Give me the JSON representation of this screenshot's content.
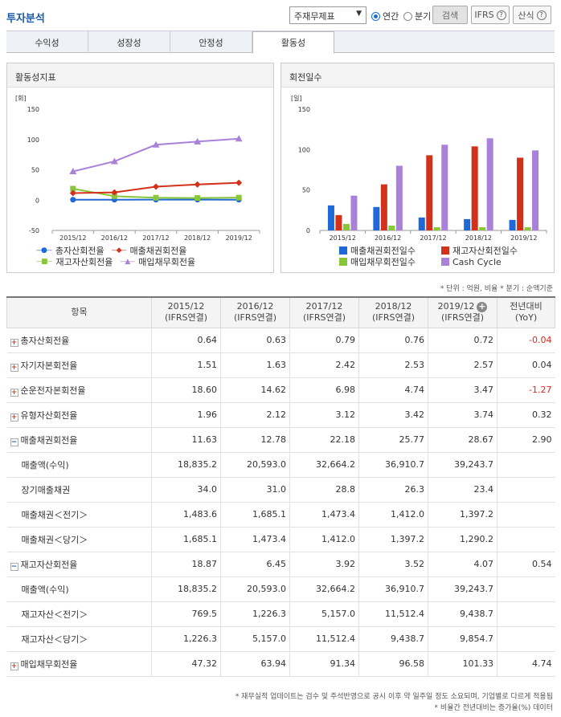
{
  "header": {
    "title": "투자분석",
    "select_value": "주재무제표",
    "radio_annual": "연간",
    "radio_quarter": "분기",
    "search_label": "검색",
    "ifrs_label": "IFRS",
    "formula_label": "산식"
  },
  "tabs": [
    "수익성",
    "성장성",
    "안정성",
    "활동성"
  ],
  "charts": {
    "left_title": "활동성지표",
    "right_title": "회전일수"
  },
  "chart_data": [
    {
      "type": "line",
      "title": "활동성지표",
      "unit": "[회]",
      "x": [
        "2015/12",
        "2016/12",
        "2017/12",
        "2018/12",
        "2019/12"
      ],
      "ylim": [
        -50,
        150
      ],
      "yticks": [
        "150",
        "100",
        "50",
        "0",
        "-50"
      ],
      "grid": false,
      "legend_position": "bottom",
      "series": [
        {
          "name": "총자산회전율",
          "color": "#1f68d8",
          "marker": "circle",
          "values": [
            0.64,
            0.63,
            0.79,
            0.76,
            0.72
          ]
        },
        {
          "name": "매출채권회전율",
          "color": "#d2321c",
          "marker": "diamond",
          "values": [
            11.63,
            12.78,
            22.18,
            25.77,
            28.67
          ]
        },
        {
          "name": "재고자산회전율",
          "color": "#88c63a",
          "marker": "square",
          "values": [
            18.87,
            6.45,
            3.92,
            3.52,
            4.07
          ]
        },
        {
          "name": "매입채무회전율",
          "color": "#a981d9",
          "marker": "triangle",
          "values": [
            47.32,
            63.94,
            91.34,
            96.58,
            101.33
          ]
        }
      ]
    },
    {
      "type": "bar",
      "title": "회전일수",
      "unit": "[일]",
      "categories": [
        "2015/12",
        "2016/12",
        "2017/12",
        "2018/12",
        "2019/12"
      ],
      "ylim": [
        0,
        150
      ],
      "yticks": [
        "150",
        "100",
        "50",
        "0"
      ],
      "grid": false,
      "legend_position": "bottom",
      "series": [
        {
          "name": "매출채권회전일수",
          "color": "#1f68d8",
          "values": [
            31,
            29,
            16,
            14,
            13
          ]
        },
        {
          "name": "재고자산회전일수",
          "color": "#d2321c",
          "values": [
            19,
            57,
            93,
            104,
            90
          ]
        },
        {
          "name": "매입채무회전일수",
          "color": "#88c63a",
          "values": [
            8,
            6,
            4,
            4,
            4
          ]
        },
        {
          "name": "Cash Cycle",
          "color": "#a981d9",
          "values": [
            43,
            80,
            106,
            114,
            99
          ]
        }
      ]
    }
  ],
  "unit_note": "* 단위 : 억원, 비율   * 분기 : 순액기준",
  "table": {
    "headers": {
      "item": "항목",
      "periods": [
        {
          "year": "2015/12",
          "basis": "(IFRS연결)"
        },
        {
          "year": "2016/12",
          "basis": "(IFRS연결)"
        },
        {
          "year": "2017/12",
          "basis": "(IFRS연결)"
        },
        {
          "year": "2018/12",
          "basis": "(IFRS연결)"
        },
        {
          "year": "2019/12",
          "basis": "(IFRS연결)"
        }
      ],
      "yoy_line1": "전년대비",
      "yoy_line2": "(YoY)"
    },
    "rows": [
      {
        "label": "총자산회전율",
        "toggle": "+",
        "values": [
          "0.64",
          "0.63",
          "0.79",
          "0.76",
          "0.72"
        ],
        "yoy": "-0.04",
        "neg": true
      },
      {
        "label": "자기자본회전율",
        "toggle": "+",
        "values": [
          "1.51",
          "1.63",
          "2.42",
          "2.53",
          "2.57"
        ],
        "yoy": "0.04"
      },
      {
        "label": "순운전자본회전율",
        "toggle": "+",
        "values": [
          "18.60",
          "14.62",
          "6.98",
          "4.74",
          "3.47"
        ],
        "yoy": "-1.27",
        "neg": true
      },
      {
        "label": "유형자산회전율",
        "toggle": "+",
        "values": [
          "1.96",
          "2.12",
          "3.12",
          "3.42",
          "3.74"
        ],
        "yoy": "0.32"
      },
      {
        "label": "매출채권회전율",
        "toggle": "-",
        "values": [
          "11.63",
          "12.78",
          "22.18",
          "25.77",
          "28.67"
        ],
        "yoy": "2.90"
      },
      {
        "label": "매출액(수익)",
        "sub": true,
        "values": [
          "18,835.2",
          "20,593.0",
          "32,664.2",
          "36,910.7",
          "39,243.7"
        ],
        "yoy": ""
      },
      {
        "label": "장기매출채권",
        "sub": true,
        "values": [
          "34.0",
          "31.0",
          "28.8",
          "26.3",
          "23.4"
        ],
        "yoy": ""
      },
      {
        "label": "매출채권＜전기＞",
        "sub": true,
        "values": [
          "1,483.6",
          "1,685.1",
          "1,473.4",
          "1,412.0",
          "1,397.2"
        ],
        "yoy": ""
      },
      {
        "label": "매출채권＜당기＞",
        "sub": true,
        "values": [
          "1,685.1",
          "1,473.4",
          "1,412.0",
          "1,397.2",
          "1,290.2"
        ],
        "yoy": ""
      },
      {
        "label": "재고자산회전율",
        "toggle": "-",
        "values": [
          "18.87",
          "6.45",
          "3.92",
          "3.52",
          "4.07"
        ],
        "yoy": "0.54"
      },
      {
        "label": "매출액(수익)",
        "sub": true,
        "values": [
          "18,835.2",
          "20,593.0",
          "32,664.2",
          "36,910.7",
          "39,243.7"
        ],
        "yoy": ""
      },
      {
        "label": "재고자산＜전기＞",
        "sub": true,
        "values": [
          "769.5",
          "1,226.3",
          "5,157.0",
          "11,512.4",
          "9,438.7"
        ],
        "yoy": ""
      },
      {
        "label": "재고자산＜당기＞",
        "sub": true,
        "values": [
          "1,226.3",
          "5,157.0",
          "11,512.4",
          "9,438.7",
          "9,854.7"
        ],
        "yoy": ""
      },
      {
        "label": "매입채무회전율",
        "toggle": "+",
        "values": [
          "47.32",
          "63.94",
          "91.34",
          "96.58",
          "101.33"
        ],
        "yoy": "4.74"
      }
    ]
  },
  "footnotes": [
    "* 재무실적 업데이트는 검수 및 주석반영으로 공시 이후 약 일주일 정도 소요되며, 기업별로 다르게 적용됨",
    "* 비율간 전년대비는 증가율(%) 데이터"
  ]
}
